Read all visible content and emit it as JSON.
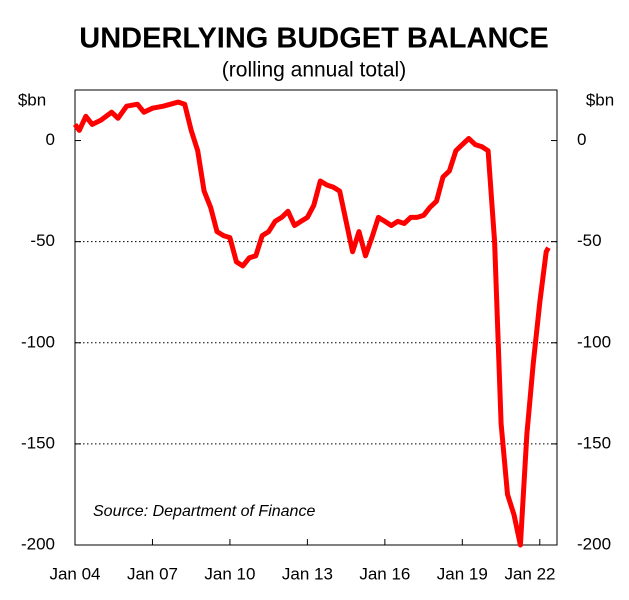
{
  "chart_data": {
    "type": "line",
    "title": "UNDERLYING BUDGET BALANCE",
    "subtitle": "(rolling annual total)",
    "y_label": "$bn",
    "y2_label": "$bn",
    "annotation": "Source: Department of Finance",
    "x": [
      "2004-01",
      "2004-03",
      "2004-06",
      "2004-09",
      "2005-01",
      "2005-06",
      "2005-09",
      "2006-01",
      "2006-06",
      "2006-09",
      "2007-01",
      "2007-06",
      "2008-01",
      "2008-04",
      "2008-07",
      "2008-10",
      "2009-01",
      "2009-04",
      "2009-07",
      "2009-10",
      "2010-01",
      "2010-04",
      "2010-07",
      "2010-10",
      "2011-01",
      "2011-04",
      "2011-07",
      "2011-10",
      "2012-01",
      "2012-04",
      "2012-07",
      "2012-10",
      "2013-01",
      "2013-04",
      "2013-07",
      "2013-10",
      "2014-01",
      "2014-04",
      "2014-07",
      "2014-10",
      "2015-01",
      "2015-04",
      "2015-07",
      "2015-10",
      "2016-01",
      "2016-04",
      "2016-07",
      "2016-10",
      "2017-01",
      "2017-04",
      "2017-07",
      "2017-10",
      "2018-01",
      "2018-04",
      "2018-07",
      "2018-10",
      "2019-01",
      "2019-04",
      "2019-07",
      "2019-10",
      "2020-01",
      "2020-04",
      "2020-07",
      "2020-10",
      "2021-01",
      "2021-04",
      "2021-07",
      "2021-10",
      "2022-01",
      "2022-04",
      "2022-05"
    ],
    "series": [
      {
        "name": "Underlying budget balance",
        "color": "#ff0000",
        "values": [
          8,
          5,
          12,
          8,
          10,
          14,
          11,
          17,
          18,
          14,
          16,
          17,
          19,
          18,
          5,
          -5,
          -25,
          -33,
          -45,
          -47,
          -48,
          -60,
          -62,
          -58,
          -57,
          -47,
          -45,
          -40,
          -38,
          -35,
          -42,
          -40,
          -38,
          -32,
          -20,
          -22,
          -23,
          -25,
          -40,
          -55,
          -45,
          -57,
          -48,
          -38,
          -40,
          -42,
          -40,
          -41,
          -38,
          -38,
          -37,
          -33,
          -30,
          -18,
          -15,
          -5,
          -2,
          1,
          -2,
          -3,
          -5,
          -50,
          -140,
          -175,
          -185,
          -200,
          -145,
          -110,
          -80,
          -55,
          -53
        ]
      }
    ],
    "xlim": [
      "2004-01",
      "2022-09"
    ],
    "xticks": [
      {
        "value": "2004-01",
        "label": "Jan 04"
      },
      {
        "value": "2007-01",
        "label": "Jan 07"
      },
      {
        "value": "2010-01",
        "label": "Jan 10"
      },
      {
        "value": "2013-01",
        "label": "Jan 13"
      },
      {
        "value": "2016-01",
        "label": "Jan 16"
      },
      {
        "value": "2019-01",
        "label": "Jan 19"
      },
      {
        "value": "2022-01",
        "label": "Jan 22"
      }
    ],
    "ylim": [
      -200,
      25
    ],
    "yticks": [
      -200,
      -150,
      -100,
      -50,
      0
    ],
    "y2lim": [
      -200,
      25
    ],
    "y2ticks": [
      -200,
      -150,
      -100,
      -50,
      0
    ],
    "grid": true
  }
}
